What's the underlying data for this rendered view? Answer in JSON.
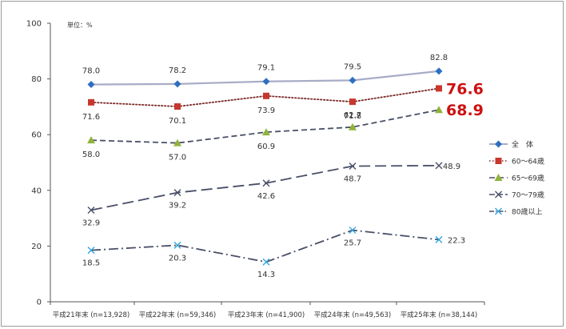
{
  "chart_data": {
    "type": "line",
    "unit_label": "単位：%",
    "categories": [
      "平成21年末 (n=13,928)",
      "平成22年末 (n=59,346)",
      "平成23年末 (n=41,900)",
      "平成24年末 (n=49,563)",
      "平成25年末 (n=38,144)"
    ],
    "ylim": [
      0,
      100
    ],
    "yticks": [
      "0",
      "20",
      "40",
      "60",
      "80",
      "100"
    ],
    "legend_position": "right",
    "series": [
      {
        "name": "全　体",
        "values": [
          78.0,
          78.2,
          79.1,
          79.5,
          82.8
        ],
        "labels": [
          "78.0",
          "78.2",
          "79.1",
          "79.5",
          "82.8"
        ],
        "color": "#a8acc6",
        "marker": "diamond",
        "marker_color": "#2e6fc0",
        "dash": "solid"
      },
      {
        "name": "60～64歳",
        "values": [
          71.6,
          70.1,
          73.9,
          71.8,
          76.6
        ],
        "labels": [
          "71.6",
          "70.1",
          "73.9",
          "71.8",
          "76.6"
        ],
        "color": "#7b2a26",
        "marker": "square",
        "marker_color": "#c8372d",
        "dash": "dotted",
        "highlight_last": true
      },
      {
        "name": "65～69歳",
        "values": [
          58.0,
          57.0,
          60.9,
          62.7,
          68.9
        ],
        "labels": [
          "58.0",
          "57.0",
          "60.9",
          "62.7",
          "68.9"
        ],
        "color": "#4a4f68",
        "marker": "triangle",
        "marker_color": "#8fb33a",
        "dash": "dashed",
        "highlight_last": true
      },
      {
        "name": "70～79歳",
        "values": [
          32.9,
          39.2,
          42.6,
          48.7,
          48.9
        ],
        "labels": [
          "32.9",
          "39.2",
          "42.6",
          "48.7",
          "48.9"
        ],
        "color": "#4a4f68",
        "marker": "x",
        "marker_color": "#4a4f68",
        "dash": "longdash"
      },
      {
        "name": "80歳以上",
        "values": [
          18.5,
          20.3,
          14.3,
          25.7,
          22.3
        ],
        "labels": [
          "18.5",
          "20.3",
          "14.3",
          "25.7",
          "22.3"
        ],
        "color": "#4a4f68",
        "marker": "x",
        "marker_color": "#2fa6dd",
        "dash": "dashdot"
      }
    ]
  }
}
